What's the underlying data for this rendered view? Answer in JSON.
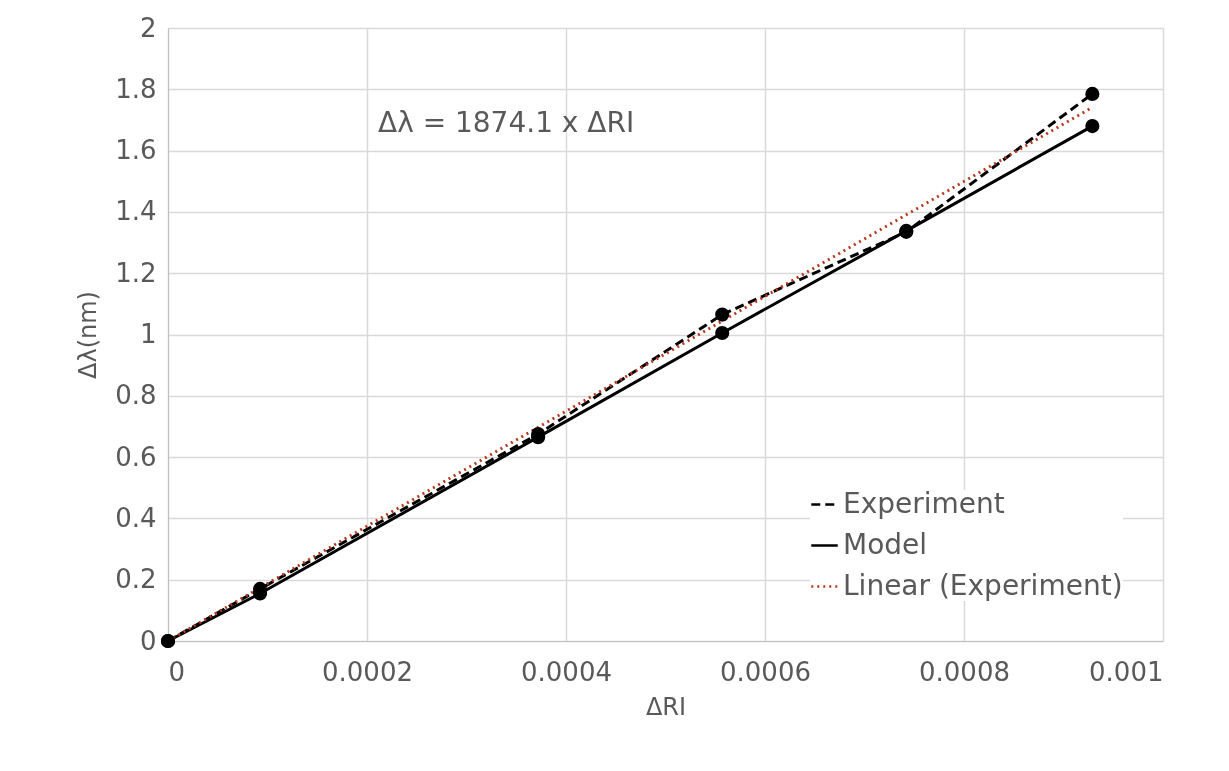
{
  "chart_data": {
    "type": "line",
    "xlabel": "ΔRI",
    "ylabel": "Δλ(nm)",
    "annotations": [
      "Δλ = 1874.1 x ΔRI"
    ],
    "xlim": [
      0,
      0.001
    ],
    "xticks": [
      0,
      0.0002,
      0.0004,
      0.0006,
      0.0008,
      0.001
    ],
    "ylim": [
      0,
      2
    ],
    "yticks": [
      0,
      0.2,
      0.4,
      0.6,
      0.8,
      1,
      1.2,
      1.4,
      1.6,
      1.8,
      2
    ],
    "grid": true,
    "legend": "bottom right",
    "series": [
      {
        "name": "Experiment",
        "color": "#000000",
        "marker": "circle",
        "line_style": "dashed",
        "x": [
          0,
          9.25e-05,
          0.000372,
          0.000557,
          0.000742,
          0.000929
        ],
        "values": [
          0,
          0.17,
          0.675,
          1.065,
          1.335,
          1.785
        ]
      },
      {
        "name": "Model",
        "color": "#000000",
        "marker": "circle",
        "line_style": "solid",
        "x": [
          0,
          9.25e-05,
          0.000372,
          0.000557,
          0.000742,
          0.000929
        ],
        "values": [
          0,
          0.155,
          0.665,
          1.005,
          1.338,
          1.68
        ]
      },
      {
        "name": "Linear (Experiment)",
        "type": "line",
        "color": "#b5371a",
        "marker": "none",
        "line_style": "dotted",
        "x": [
          0,
          0.000929
        ],
        "values": [
          0,
          1.741
        ]
      }
    ]
  }
}
